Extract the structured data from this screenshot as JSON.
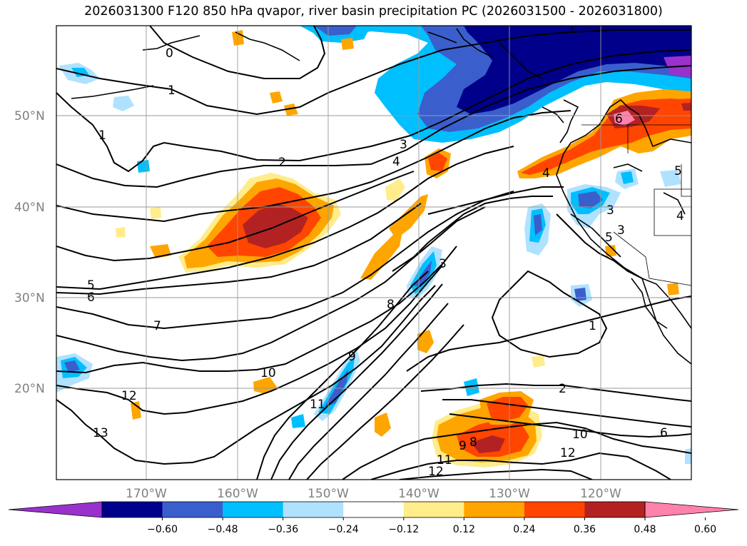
{
  "title": "2026031300 F120 850 hPa qvapor, river basin precipitation PC (2026031500 - 2026031800)",
  "lat_labels": [
    "50°N",
    "40°N",
    "30°N",
    "20°N"
  ],
  "lon_labels": [
    "170°W",
    "160°W",
    "150°W",
    "140°W",
    "130°W",
    "120°W"
  ],
  "colorbar": {
    "tick_labels": [
      "−0.60",
      "−0.48",
      "−0.36",
      "−0.24",
      "−0.12",
      "0.12",
      "0.24",
      "0.36",
      "0.48",
      "0.60"
    ],
    "colors": [
      "#9932cc",
      "#00008b",
      "#3a5fcd",
      "#00bfff",
      "#b0e2ff",
      "#ffffff",
      "#ffec8b",
      "#ffa500",
      "#ff4500",
      "#b22222",
      "#ff82ab"
    ]
  },
  "contour_labels": [
    "0",
    "1",
    "1",
    "2",
    "3",
    "4",
    "5",
    "6",
    "7",
    "8",
    "9",
    "10",
    "11",
    "12",
    "13",
    "1",
    "2",
    "3",
    "3",
    "4",
    "5",
    "6",
    "8",
    "9",
    "10",
    "11",
    "12",
    "12",
    "4",
    "5",
    "6",
    "3",
    "1"
  ]
}
